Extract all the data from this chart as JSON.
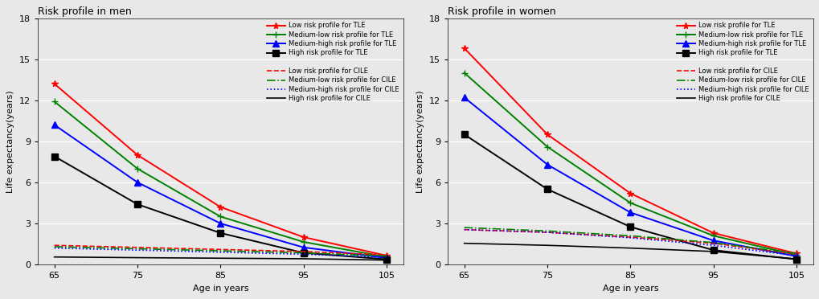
{
  "ages": [
    65,
    75,
    85,
    95,
    105
  ],
  "men": {
    "TLE": {
      "low": [
        13.2,
        8.0,
        4.2,
        2.0,
        0.65
      ],
      "medium_low": [
        11.9,
        7.0,
        3.5,
        1.65,
        0.55
      ],
      "medium_high": [
        10.2,
        6.0,
        3.0,
        1.25,
        0.48
      ],
      "high": [
        7.9,
        4.4,
        2.3,
        0.85,
        0.38
      ]
    },
    "CILE": {
      "low": [
        1.4,
        1.25,
        1.1,
        0.95,
        0.7
      ],
      "medium_low": [
        1.3,
        1.15,
        1.0,
        0.85,
        0.62
      ],
      "medium_high": [
        1.2,
        1.05,
        0.9,
        0.75,
        0.52
      ],
      "high": [
        0.55,
        0.5,
        0.46,
        0.42,
        0.32
      ]
    }
  },
  "women": {
    "TLE": {
      "low": [
        15.8,
        9.5,
        5.2,
        2.3,
        0.8
      ],
      "medium_low": [
        14.0,
        8.6,
        4.5,
        2.1,
        0.7
      ],
      "medium_high": [
        12.2,
        7.3,
        3.8,
        1.75,
        0.6
      ],
      "high": [
        9.5,
        5.5,
        2.75,
        1.05,
        0.38
      ]
    },
    "CILE": {
      "low": [
        2.55,
        2.35,
        2.0,
        1.55,
        0.75
      ],
      "medium_low": [
        2.7,
        2.45,
        2.1,
        1.6,
        0.8
      ],
      "medium_high": [
        2.55,
        2.35,
        1.95,
        1.4,
        0.65
      ],
      "high": [
        1.55,
        1.4,
        1.2,
        0.95,
        0.4
      ]
    }
  },
  "colors": {
    "low": "#FF0000",
    "medium_low": "#008000",
    "medium_high": "#0000FF",
    "high": "#000000"
  },
  "markers": {
    "low": "*",
    "medium_low": "+",
    "medium_high": "^",
    "high": "s"
  },
  "cile_styles": {
    "low": "--",
    "medium_low": "-.",
    "medium_high": ":",
    "high": "-"
  },
  "ylim": [
    0,
    18
  ],
  "yticks": [
    0,
    3,
    6,
    9,
    12,
    15,
    18
  ],
  "xticks": [
    65,
    75,
    85,
    95,
    105
  ],
  "xlabel": "Age in years",
  "ylabel": "Life expectancy(years)",
  "title_men": "Risk profile in men",
  "title_women": "Risk profile in women",
  "plot_bg_color": "#E8E8E8",
  "fig_bg_color": "#E8E8E8",
  "legend_TLE": [
    "Low risk profile for TLE",
    "Medium-low risk profile for TLE",
    "Medium-high risk profile for TLE",
    "High risk profile for TLE"
  ],
  "legend_CILE": [
    "Low risk profile for CILE",
    "Medium-low risk profile for CILE",
    "Medium-high risk profile for CILE",
    "High risk profile for CILE"
  ],
  "risk_keys": [
    "low",
    "medium_low",
    "medium_high",
    "high"
  ],
  "linewidth": 1.4,
  "markersize": 5.5
}
